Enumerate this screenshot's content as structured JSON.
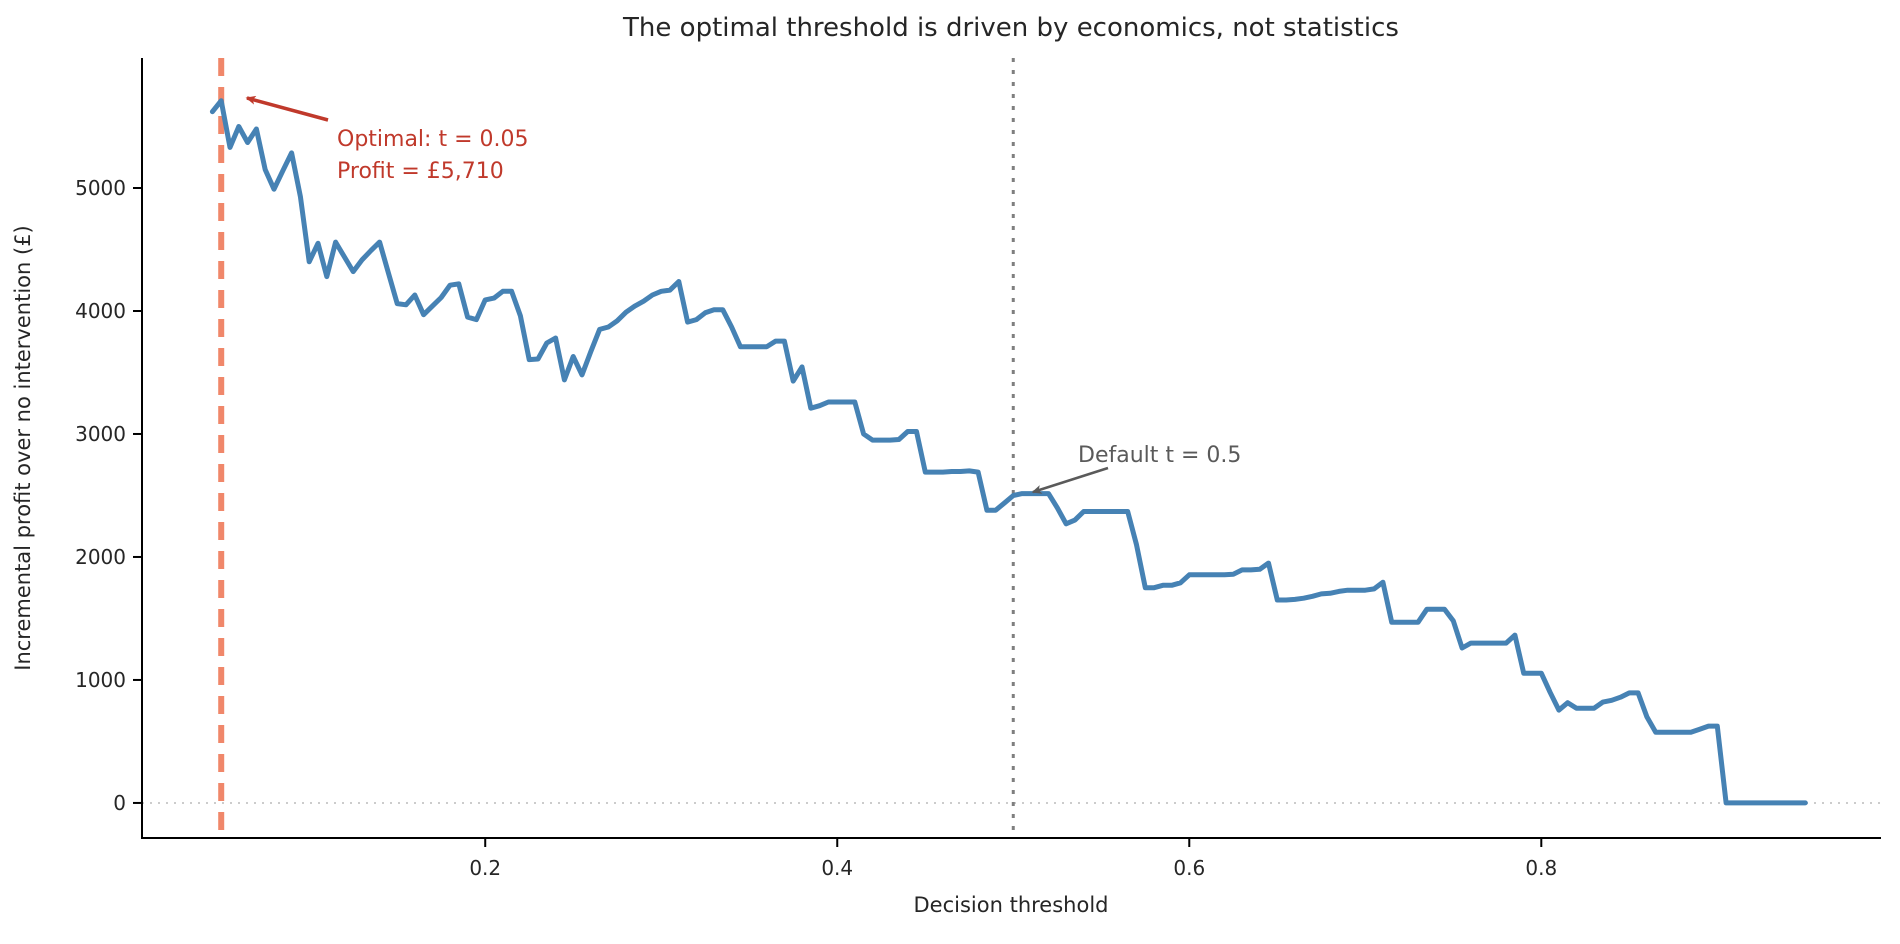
{
  "chart_data": {
    "type": "line",
    "title": "The optimal threshold is driven by economics, not statistics",
    "xlabel": "Decision threshold",
    "ylabel": "Incremental profit over no intervention (£)",
    "xlim": [
      0.005,
      0.993
    ],
    "ylim": [
      -285,
      6057
    ],
    "x_ticks": [
      0.2,
      0.4,
      0.6,
      0.8
    ],
    "y_ticks": [
      0,
      1000,
      2000,
      3000,
      4000,
      5000
    ],
    "grid": false,
    "legend": "none",
    "colors": {
      "line": "#4682B4",
      "optimal_vline": "#F0876A",
      "default_vline": "#7f7f7f",
      "zero_line": "#cccccc",
      "annotation_red": "#C0392B",
      "annotation_gray": "#5a5a5a",
      "axis": "#000000"
    },
    "hlines": [
      {
        "y": 0,
        "color": "#cccccc",
        "dash": "2 6",
        "width": 2
      }
    ],
    "vlines": [
      {
        "name": "optimal-threshold",
        "x": 0.05,
        "color": "#F0876A",
        "dash": "18 11",
        "width": 6
      },
      {
        "name": "default-threshold",
        "x": 0.5,
        "color": "#7f7f7f",
        "dash": "4 8",
        "width": 3
      }
    ],
    "series": [
      {
        "name": "Incremental profit",
        "color": "#4682B4",
        "width": 5,
        "points": [
          [
            0.045,
            5620
          ],
          [
            0.05,
            5710
          ],
          [
            0.055,
            5330
          ],
          [
            0.06,
            5500
          ],
          [
            0.065,
            5370
          ],
          [
            0.07,
            5480
          ],
          [
            0.075,
            5150
          ],
          [
            0.08,
            4990
          ],
          [
            0.085,
            5140
          ],
          [
            0.09,
            5285
          ],
          [
            0.095,
            4930
          ],
          [
            0.1,
            4400
          ],
          [
            0.105,
            4550
          ],
          [
            0.11,
            4280
          ],
          [
            0.115,
            4560
          ],
          [
            0.12,
            4440
          ],
          [
            0.125,
            4320
          ],
          [
            0.13,
            4415
          ],
          [
            0.135,
            4490
          ],
          [
            0.14,
            4560
          ],
          [
            0.145,
            4310
          ],
          [
            0.15,
            4060
          ],
          [
            0.155,
            4050
          ],
          [
            0.16,
            4130
          ],
          [
            0.165,
            3970
          ],
          [
            0.17,
            4040
          ],
          [
            0.175,
            4110
          ],
          [
            0.18,
            4210
          ],
          [
            0.185,
            4220
          ],
          [
            0.19,
            3950
          ],
          [
            0.195,
            3930
          ],
          [
            0.2,
            4090
          ],
          [
            0.205,
            4105
          ],
          [
            0.21,
            4160
          ],
          [
            0.215,
            4160
          ],
          [
            0.22,
            3960
          ],
          [
            0.225,
            3605
          ],
          [
            0.23,
            3610
          ],
          [
            0.235,
            3740
          ],
          [
            0.24,
            3780
          ],
          [
            0.245,
            3440
          ],
          [
            0.25,
            3630
          ],
          [
            0.255,
            3480
          ],
          [
            0.26,
            3670
          ],
          [
            0.265,
            3850
          ],
          [
            0.27,
            3870
          ],
          [
            0.275,
            3920
          ],
          [
            0.28,
            3990
          ],
          [
            0.285,
            4040
          ],
          [
            0.29,
            4080
          ],
          [
            0.295,
            4130
          ],
          [
            0.3,
            4160
          ],
          [
            0.305,
            4170
          ],
          [
            0.31,
            4240
          ],
          [
            0.315,
            3910
          ],
          [
            0.32,
            3930
          ],
          [
            0.325,
            3985
          ],
          [
            0.33,
            4010
          ],
          [
            0.335,
            4010
          ],
          [
            0.34,
            3870
          ],
          [
            0.345,
            3710
          ],
          [
            0.35,
            3710
          ],
          [
            0.355,
            3710
          ],
          [
            0.36,
            3710
          ],
          [
            0.365,
            3755
          ],
          [
            0.37,
            3755
          ],
          [
            0.375,
            3430
          ],
          [
            0.38,
            3545
          ],
          [
            0.385,
            3210
          ],
          [
            0.39,
            3230
          ],
          [
            0.395,
            3260
          ],
          [
            0.4,
            3260
          ],
          [
            0.405,
            3260
          ],
          [
            0.41,
            3260
          ],
          [
            0.415,
            3000
          ],
          [
            0.42,
            2950
          ],
          [
            0.425,
            2950
          ],
          [
            0.43,
            2950
          ],
          [
            0.435,
            2955
          ],
          [
            0.44,
            3020
          ],
          [
            0.445,
            3020
          ],
          [
            0.45,
            2690
          ],
          [
            0.455,
            2690
          ],
          [
            0.46,
            2690
          ],
          [
            0.465,
            2695
          ],
          [
            0.47,
            2695
          ],
          [
            0.475,
            2700
          ],
          [
            0.48,
            2690
          ],
          [
            0.485,
            2380
          ],
          [
            0.49,
            2380
          ],
          [
            0.495,
            2440
          ],
          [
            0.5,
            2500
          ],
          [
            0.505,
            2515
          ],
          [
            0.51,
            2515
          ],
          [
            0.515,
            2515
          ],
          [
            0.52,
            2515
          ],
          [
            0.525,
            2400
          ],
          [
            0.53,
            2270
          ],
          [
            0.535,
            2300
          ],
          [
            0.54,
            2370
          ],
          [
            0.545,
            2370
          ],
          [
            0.55,
            2370
          ],
          [
            0.555,
            2370
          ],
          [
            0.56,
            2370
          ],
          [
            0.565,
            2370
          ],
          [
            0.57,
            2100
          ],
          [
            0.575,
            1750
          ],
          [
            0.58,
            1750
          ],
          [
            0.585,
            1770
          ],
          [
            0.59,
            1770
          ],
          [
            0.595,
            1790
          ],
          [
            0.6,
            1855
          ],
          [
            0.605,
            1855
          ],
          [
            0.61,
            1855
          ],
          [
            0.615,
            1855
          ],
          [
            0.62,
            1855
          ],
          [
            0.625,
            1860
          ],
          [
            0.63,
            1895
          ],
          [
            0.635,
            1895
          ],
          [
            0.64,
            1900
          ],
          [
            0.645,
            1950
          ],
          [
            0.65,
            1650
          ],
          [
            0.655,
            1650
          ],
          [
            0.66,
            1655
          ],
          [
            0.665,
            1665
          ],
          [
            0.67,
            1680
          ],
          [
            0.675,
            1700
          ],
          [
            0.68,
            1705
          ],
          [
            0.685,
            1720
          ],
          [
            0.69,
            1730
          ],
          [
            0.695,
            1730
          ],
          [
            0.7,
            1730
          ],
          [
            0.705,
            1740
          ],
          [
            0.71,
            1795
          ],
          [
            0.715,
            1470
          ],
          [
            0.72,
            1470
          ],
          [
            0.725,
            1470
          ],
          [
            0.73,
            1470
          ],
          [
            0.735,
            1575
          ],
          [
            0.74,
            1575
          ],
          [
            0.745,
            1575
          ],
          [
            0.75,
            1480
          ],
          [
            0.755,
            1260
          ],
          [
            0.76,
            1300
          ],
          [
            0.765,
            1300
          ],
          [
            0.77,
            1300
          ],
          [
            0.775,
            1300
          ],
          [
            0.78,
            1300
          ],
          [
            0.785,
            1365
          ],
          [
            0.79,
            1055
          ],
          [
            0.795,
            1055
          ],
          [
            0.8,
            1055
          ],
          [
            0.805,
            900
          ],
          [
            0.81,
            755
          ],
          [
            0.815,
            815
          ],
          [
            0.82,
            770
          ],
          [
            0.825,
            770
          ],
          [
            0.83,
            770
          ],
          [
            0.835,
            820
          ],
          [
            0.84,
            835
          ],
          [
            0.845,
            860
          ],
          [
            0.85,
            895
          ],
          [
            0.855,
            895
          ],
          [
            0.86,
            700
          ],
          [
            0.865,
            575
          ],
          [
            0.87,
            575
          ],
          [
            0.875,
            575
          ],
          [
            0.88,
            575
          ],
          [
            0.885,
            575
          ],
          [
            0.89,
            600
          ],
          [
            0.895,
            625
          ],
          [
            0.9,
            625
          ],
          [
            0.905,
            0
          ],
          [
            0.91,
            0
          ],
          [
            0.915,
            0
          ],
          [
            0.92,
            0
          ],
          [
            0.925,
            0
          ],
          [
            0.93,
            0
          ],
          [
            0.935,
            0
          ],
          [
            0.94,
            0
          ],
          [
            0.945,
            0
          ],
          [
            0.95,
            0
          ]
        ]
      }
    ]
  },
  "annotations": {
    "optimal": {
      "line1": "Optimal: t = 0.05",
      "line2": "Profit = £5,710",
      "points_to_x": 0.05,
      "points_to_profit": 5710,
      "color": "#C0392B"
    },
    "default_threshold": {
      "label": "Default t = 0.5",
      "points_to_x": 0.5,
      "color": "#5a5a5a"
    }
  }
}
